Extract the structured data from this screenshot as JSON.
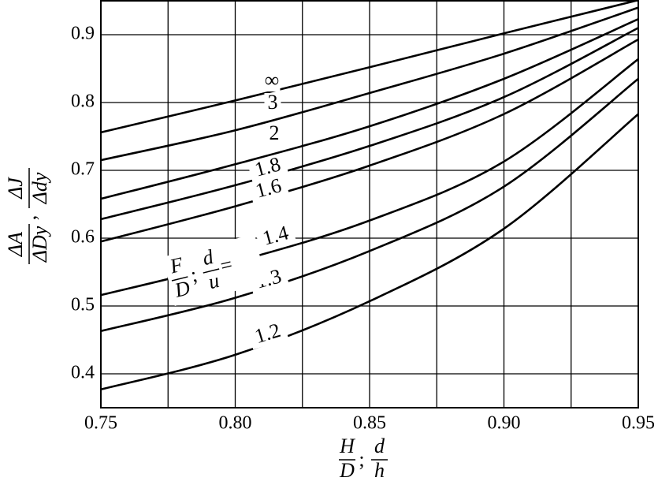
{
  "chart_data": {
    "type": "line",
    "x": [
      0.75,
      0.8,
      0.85,
      0.9,
      0.95
    ],
    "series": [
      {
        "name": "∞",
        "color": "#000000",
        "values": [
          0.756,
          0.803,
          0.852,
          0.902,
          0.951
        ]
      },
      {
        "name": "3",
        "color": "#000000",
        "values": [
          0.715,
          0.759,
          0.814,
          0.872,
          0.94
        ]
      },
      {
        "name": "2",
        "color": "#000000",
        "values": [
          0.658,
          0.709,
          0.765,
          0.835,
          0.923
        ]
      },
      {
        "name": "1.8",
        "color": "#000000",
        "values": [
          0.628,
          0.678,
          0.736,
          0.808,
          0.91
        ]
      },
      {
        "name": "1.6",
        "color": "#000000",
        "values": [
          0.595,
          0.647,
          0.707,
          0.783,
          0.893
        ]
      },
      {
        "name": "1.4",
        "color": "#000000",
        "values": [
          0.516,
          0.565,
          0.626,
          0.713,
          0.864
        ]
      },
      {
        "name": "1.3",
        "color": "#000000",
        "values": [
          0.463,
          0.512,
          0.581,
          0.676,
          0.835
        ]
      },
      {
        "name": "1.2",
        "color": "#000000",
        "values": [
          0.377,
          0.428,
          0.507,
          0.614,
          0.783
        ]
      }
    ],
    "xlim": [
      0.75,
      0.95
    ],
    "xticks": [
      0.75,
      {
        "value": 0.8,
        "label": "0.80"
      },
      0.85,
      {
        "value": 0.9,
        "label": "0.90"
      },
      0.95
    ],
    "x_minor_ticks": [
      0.775,
      0.825,
      0.875,
      0.925
    ],
    "ylim": [
      0.35,
      0.95
    ],
    "yticks": [
      0.4,
      0.5,
      0.6,
      0.7,
      0.8,
      0.9
    ],
    "grid": true,
    "xlabel": {
      "fractions": [
        {
          "num": "H",
          "den": "D"
        },
        {
          "num": "d",
          "den": "h"
        }
      ],
      "separator": ";"
    },
    "ylabel": {
      "fractions": [
        {
          "num": "ΔA",
          "den": "ΔDy"
        },
        {
          "num": "ΔJ",
          "den": "Δdy"
        }
      ],
      "separator": ","
    },
    "annotation": {
      "fractions": [
        {
          "num": "F",
          "den": "D"
        },
        {
          "num": "d",
          "den": "u"
        }
      ],
      "separator": ";",
      "suffix": "="
    }
  }
}
